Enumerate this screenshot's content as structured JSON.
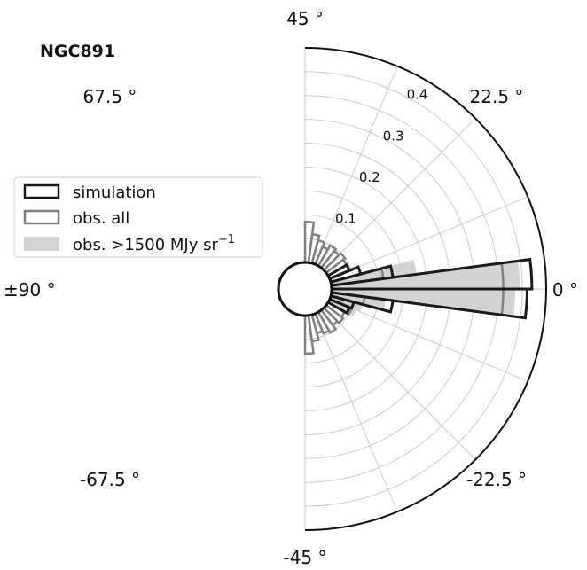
{
  "chart_data": {
    "type": "polar-histogram",
    "title": "NGC891",
    "angle_ticks": [
      {
        "angle": 0,
        "label": "0 °"
      },
      {
        "angle": 22.5,
        "label": "22.5 °"
      },
      {
        "angle": 45,
        "label": "45 °"
      },
      {
        "angle": 67.5,
        "label": "67.5 °"
      },
      {
        "angle": 90,
        "label": "±90 °"
      },
      {
        "angle": -67.5,
        "label": "-67.5 °"
      },
      {
        "angle": -45,
        "label": "-45 °"
      },
      {
        "angle": -22.5,
        "label": "-22.5 °"
      }
    ],
    "radial_ticks": [
      0.1,
      0.2,
      0.3,
      0.4
    ],
    "radial_tick_labels": [
      "0.1",
      "0.2",
      "0.3",
      "0.4"
    ],
    "rlim": [
      0,
      0.45
    ],
    "bin_width_deg": 7.5,
    "grid": true,
    "legend_position": "left",
    "legend": [
      {
        "label": "simulation",
        "style": "simulation"
      },
      {
        "label": "obs. all",
        "style": "obs_all"
      },
      {
        "label": "obs. >1500 MJy sr",
        "sup": "−1",
        "style": "obs_bright"
      }
    ],
    "series": [
      {
        "name": "obs. >1500 MJy sr⁻¹",
        "style": "fill",
        "color": "#d3d3d4",
        "bins": [
          {
            "center": 3.75,
            "value": 0.395
          },
          {
            "center": 11.25,
            "value": 0.18
          },
          {
            "center": -3.75,
            "value": 0.385
          },
          {
            "center": -11.25,
            "value": 0.115
          },
          {
            "center": -18.75,
            "value": 0.07
          },
          {
            "center": -26.25,
            "value": 0.06
          }
        ]
      },
      {
        "name": "obs. all",
        "style": "outline",
        "color": "#808080",
        "bins": [
          {
            "center": 3.75,
            "value": 0.36
          },
          {
            "center": 11.25,
            "value": 0.11
          },
          {
            "center": -3.75,
            "value": 0.36
          },
          {
            "center": -11.25,
            "value": 0.07
          },
          {
            "center": -18.75,
            "value": 0.05
          },
          {
            "center": -26.25,
            "value": 0.05
          },
          {
            "center": 86.25,
            "value": 0.085
          },
          {
            "center": 78.75,
            "value": 0.06
          },
          {
            "center": 71.25,
            "value": 0.05
          },
          {
            "center": 63.75,
            "value": 0.04
          },
          {
            "center": 56.25,
            "value": 0.05
          },
          {
            "center": 48.75,
            "value": 0.045
          },
          {
            "center": 41.25,
            "value": 0.05
          },
          {
            "center": 33.75,
            "value": 0.045
          },
          {
            "center": -86.25,
            "value": 0.08
          },
          {
            "center": -78.75,
            "value": 0.055
          },
          {
            "center": -71.25,
            "value": 0.04
          },
          {
            "center": -63.75,
            "value": 0.045
          },
          {
            "center": -56.25,
            "value": 0.05
          },
          {
            "center": -48.75,
            "value": 0.04
          },
          {
            "center": -41.25,
            "value": 0.045
          },
          {
            "center": -33.75,
            "value": 0.04
          }
        ]
      },
      {
        "name": "simulation",
        "style": "outline",
        "color": "#1a1a1a",
        "bins": [
          {
            "center": 3.75,
            "value": 0.42
          },
          {
            "center": 11.25,
            "value": 0.13
          },
          {
            "center": 18.75,
            "value": 0.065
          },
          {
            "center": 26.25,
            "value": 0.045
          },
          {
            "center": -3.75,
            "value": 0.41
          },
          {
            "center": -11.25,
            "value": 0.13
          },
          {
            "center": -18.75,
            "value": 0.05
          },
          {
            "center": -26.25,
            "value": 0.045
          }
        ]
      }
    ]
  }
}
